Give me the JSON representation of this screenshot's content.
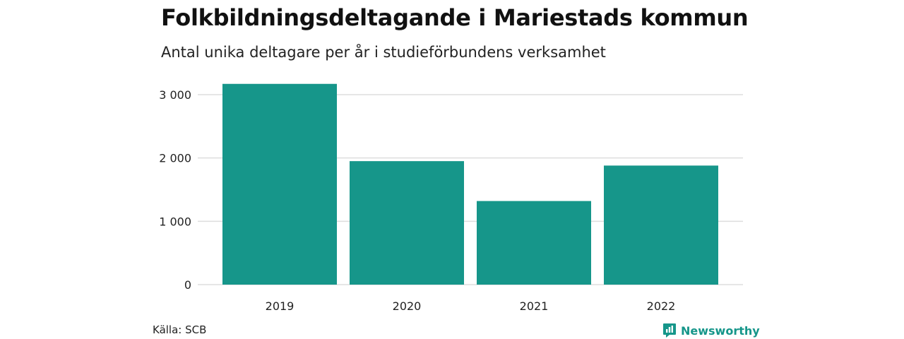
{
  "title": "Folkbildningsdeltagande i Mariestads kommun",
  "subtitle": "Antal unika deltagare per år i studieförbundens verksamhet",
  "source": "Källa: SCB",
  "brand": {
    "name": "Newsworthy",
    "color": "#16968a",
    "icon": "newsworthy-logo-icon"
  },
  "chart_data": {
    "type": "bar",
    "categories": [
      "2019",
      "2020",
      "2021",
      "2022"
    ],
    "values": [
      3170,
      1950,
      1320,
      1880
    ],
    "ylim": [
      0,
      3000
    ],
    "yticks": [
      0,
      1000,
      2000,
      3000
    ],
    "ytick_labels": [
      "0",
      "1 000",
      "2 000",
      "3 000"
    ],
    "bar_color": "#16968a",
    "grid": true
  }
}
